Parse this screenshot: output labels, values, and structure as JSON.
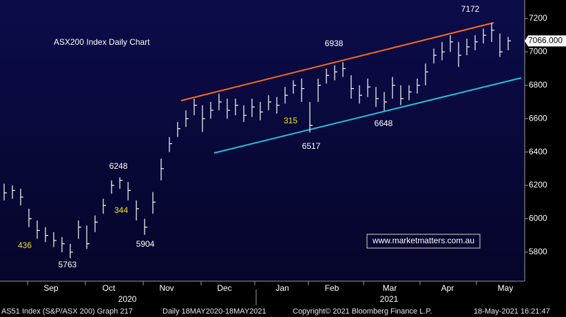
{
  "chart_data": {
    "type": "ohlc",
    "title": "ASX200 Index Daily Chart",
    "title_color": "#7cd05a",
    "color": "#ffffff",
    "grid": false,
    "categories": [
      null,
      null,
      null,
      null,
      null,
      null,
      "Sep",
      null,
      null,
      null,
      null,
      null,
      null,
      "Oct",
      null,
      null,
      null,
      null,
      null,
      null,
      "Nov",
      null,
      null,
      null,
      null,
      null,
      null,
      "Dec",
      null,
      null,
      null,
      null,
      null,
      null,
      "Jan",
      null,
      null,
      null,
      null,
      null,
      "Feb",
      null,
      null,
      null,
      null,
      null,
      null,
      "Mar",
      null,
      null,
      null,
      null,
      null,
      null,
      "Apr",
      null,
      null,
      null,
      null,
      null,
      null,
      "May"
    ],
    "high": [
      6210,
      6200,
      6180,
      6060,
      5990,
      5950,
      5920,
      5890,
      5850,
      5990,
      5960,
      6020,
      6120,
      6230,
      6248,
      6220,
      6110,
      6000,
      6160,
      6360,
      6490,
      6580,
      6650,
      6720,
      6680,
      6700,
      6750,
      6720,
      6720,
      6680,
      6720,
      6700,
      6740,
      6730,
      6790,
      6830,
      6840,
      6700,
      6840,
      6900,
      6920,
      6938,
      6860,
      6800,
      6840,
      6790,
      6760,
      6850,
      6800,
      6800,
      6840,
      6930,
      7020,
      7060,
      7100,
      7060,
      7080,
      7100,
      7140,
      7172,
      7110,
      7090
    ],
    "low": [
      6110,
      6120,
      6080,
      5950,
      5880,
      5860,
      5830,
      5800,
      5763,
      5880,
      5820,
      5920,
      6030,
      6150,
      6180,
      6110,
      5990,
      5904,
      6030,
      6230,
      6400,
      6490,
      6550,
      6620,
      6520,
      6600,
      6650,
      6600,
      6620,
      6580,
      6610,
      6590,
      6650,
      6630,
      6690,
      6750,
      6700,
      6517,
      6700,
      6810,
      6830,
      6850,
      6720,
      6690,
      6730,
      6670,
      6648,
      6720,
      6680,
      6710,
      6750,
      6800,
      6930,
      6950,
      7000,
      6910,
      6980,
      7010,
      7050,
      7060,
      6970,
      7010
    ],
    "close": [
      6155,
      6170,
      6130,
      6000,
      5930,
      5900,
      5870,
      5850,
      5800,
      5950,
      5850,
      5980,
      6080,
      6200,
      6230,
      6170,
      6060,
      5950,
      6100,
      6300,
      6450,
      6540,
      6600,
      6680,
      6600,
      6650,
      6700,
      6650,
      6680,
      6620,
      6670,
      6640,
      6700,
      6680,
      6740,
      6800,
      6780,
      6560,
      6800,
      6860,
      6880,
      6900,
      6780,
      6740,
      6790,
      6720,
      6700,
      6800,
      6720,
      6760,
      6800,
      6880,
      6980,
      7000,
      7060,
      6980,
      7030,
      7060,
      7100,
      7130,
      7000,
      7066
    ],
    "ylim": [
      5626,
      7311
    ],
    "yticks": [
      5800,
      6000,
      6200,
      6400,
      6600,
      6800,
      7000,
      7200
    ],
    "year_labels": [
      "2020",
      "2021"
    ],
    "last_price": {
      "value": 7066,
      "label": "7066.000"
    },
    "annotations": [
      {
        "text": "7172",
        "color": "#ffffff"
      },
      {
        "text": "6938",
        "color": "#ffffff"
      },
      {
        "text": "6648",
        "color": "#ffffff"
      },
      {
        "text": "6517",
        "color": "#ffffff"
      },
      {
        "text": "6248",
        "color": "#ffffff"
      },
      {
        "text": "5904",
        "color": "#ffffff"
      },
      {
        "text": "5763",
        "color": "#ffffff"
      },
      {
        "text": "315",
        "color": "#f2e21a"
      },
      {
        "text": "344",
        "color": "#f2e21a"
      },
      {
        "text": "436",
        "color": "#f2e21a"
      },
      {
        "text": "www.marketmatters.com.au",
        "color": "#ffffff"
      }
    ],
    "footer": {
      "security": "AS51 Index (S&P/ASX 200) Graph 217",
      "range": "Daily 18MAY2020-18MAY2021",
      "copyright": "Copyright© 2021 Bloomberg Finance L.P.",
      "timestamp": "18-May-2021 16:21:47"
    }
  }
}
